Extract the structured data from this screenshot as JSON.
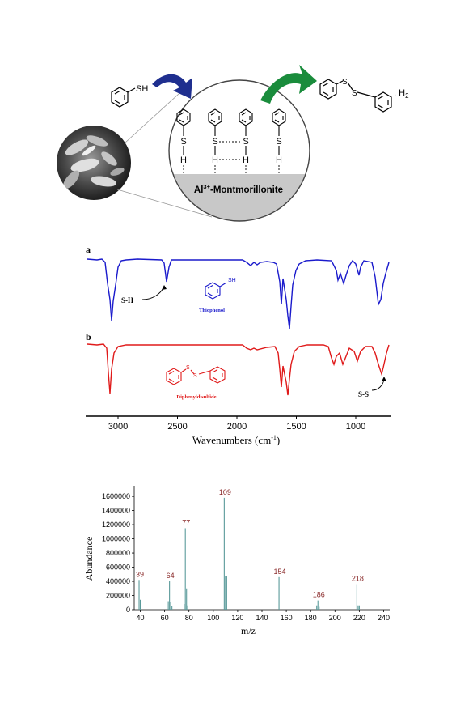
{
  "scheme": {
    "reactant_label": "SH",
    "product_label_s1": "S",
    "product_label_s2": "S",
    "product_suffix": ", H",
    "product_sub": "2",
    "inset_s_labels": [
      "S",
      "S",
      "S",
      "S"
    ],
    "inset_h_labels": [
      "H",
      "H",
      "H",
      "H"
    ],
    "catalyst_prefix": "Al",
    "catalyst_sup": "3+",
    "catalyst_suffix": "-Montmorillonite",
    "colors": {
      "blue_arrow": "#1f2f8f",
      "green_arrow": "#1a8c3c",
      "surface": "#c8c8c8"
    }
  },
  "ir": {
    "panel_a_label": "a",
    "panel_b_label": "b",
    "sh_annotation": "S-H",
    "ss_annotation": "S-S",
    "thiophenol_name": "Thiophenol",
    "thiophenol_sh": "SH",
    "diphenyl_name": "Diphenyldisulfide",
    "diphenyl_s1": "S",
    "diphenyl_s2": "S",
    "x_ticks": [
      "3000",
      "2500",
      "2000",
      "1500",
      "1000"
    ],
    "x_label_main": "Wavenumbers (cm",
    "x_label_sup": "-1",
    "x_label_end": ")",
    "colors": {
      "a": "#1a1acc",
      "b": "#e01a1a"
    }
  },
  "chart_data": {
    "type": "bar",
    "xlabel": "m/z",
    "ylabel": "Abundance",
    "xlim": [
      35,
      245
    ],
    "ylim": [
      0,
      1750000
    ],
    "x_ticks": [
      40,
      60,
      80,
      100,
      120,
      140,
      160,
      180,
      200,
      220,
      240
    ],
    "y_ticks": [
      0,
      200000,
      400000,
      600000,
      800000,
      1000000,
      1200000,
      1400000,
      1600000
    ],
    "peaks": [
      {
        "x": 39,
        "y": 420000,
        "label": "39"
      },
      {
        "x": 40,
        "y": 140000
      },
      {
        "x": 63,
        "y": 120000
      },
      {
        "x": 64,
        "y": 400000,
        "label": "64"
      },
      {
        "x": 65,
        "y": 110000
      },
      {
        "x": 66,
        "y": 50000
      },
      {
        "x": 76,
        "y": 80000
      },
      {
        "x": 77,
        "y": 1150000,
        "label": "77"
      },
      {
        "x": 78,
        "y": 300000
      },
      {
        "x": 79,
        "y": 60000
      },
      {
        "x": 109,
        "y": 1580000,
        "label": "109"
      },
      {
        "x": 110,
        "y": 480000
      },
      {
        "x": 111,
        "y": 470000
      },
      {
        "x": 154,
        "y": 460000,
        "label": "154"
      },
      {
        "x": 185,
        "y": 60000
      },
      {
        "x": 186,
        "y": 130000,
        "label": "186"
      },
      {
        "x": 187,
        "y": 40000
      },
      {
        "x": 218,
        "y": 360000,
        "label": "218"
      },
      {
        "x": 219,
        "y": 60000
      },
      {
        "x": 220,
        "y": 60000
      }
    ],
    "colors": {
      "bars": "#5a9a9a",
      "labels": "#8a2a2a"
    }
  }
}
